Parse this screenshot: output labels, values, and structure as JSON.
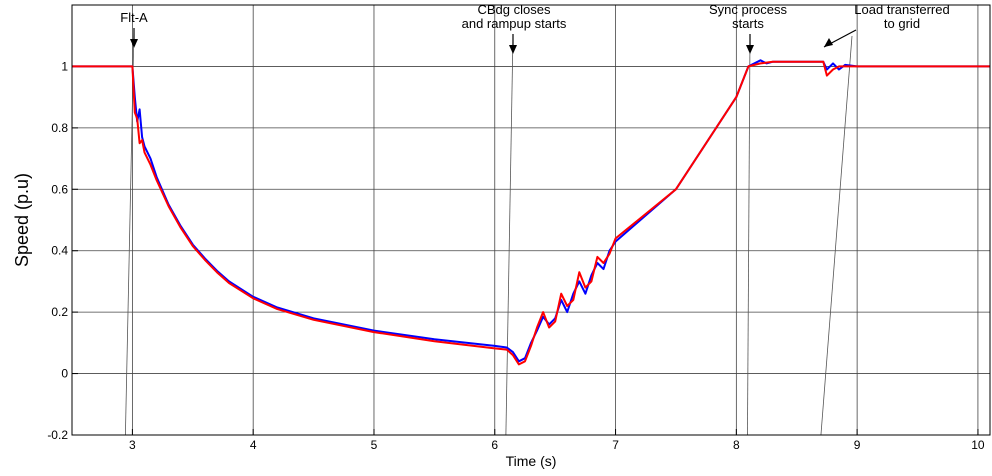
{
  "chart_data": {
    "type": "line",
    "xlabel": "Time (s)",
    "ylabel": "Speed (p.u)",
    "xlim": [
      2.5,
      10.1
    ],
    "ylim": [
      -0.2,
      1.2
    ],
    "x_ticks": [
      3,
      4,
      5,
      6,
      7,
      8,
      9,
      10
    ],
    "y_ticks": [
      -0.2,
      0,
      0.2,
      0.4,
      0.6,
      0.8,
      1
    ],
    "grid": true,
    "series": [
      {
        "color": "#0000ff",
        "points": [
          [
            2.5,
            1.0
          ],
          [
            2.99,
            1.0
          ],
          [
            3.0,
            1.0
          ],
          [
            3.02,
            0.9
          ],
          [
            3.04,
            0.82
          ],
          [
            3.06,
            0.86
          ],
          [
            3.08,
            0.77
          ],
          [
            3.1,
            0.74
          ],
          [
            3.15,
            0.7
          ],
          [
            3.2,
            0.64
          ],
          [
            3.3,
            0.55
          ],
          [
            3.4,
            0.48
          ],
          [
            3.5,
            0.42
          ],
          [
            3.6,
            0.375
          ],
          [
            3.7,
            0.335
          ],
          [
            3.8,
            0.3
          ],
          [
            4.0,
            0.25
          ],
          [
            4.2,
            0.215
          ],
          [
            4.5,
            0.18
          ],
          [
            5.0,
            0.14
          ],
          [
            5.5,
            0.112
          ],
          [
            6.0,
            0.09
          ],
          [
            6.1,
            0.085
          ],
          [
            6.15,
            0.07
          ],
          [
            6.2,
            0.04
          ],
          [
            6.25,
            0.05
          ],
          [
            6.3,
            0.1
          ],
          [
            6.35,
            0.14
          ],
          [
            6.4,
            0.185
          ],
          [
            6.45,
            0.16
          ],
          [
            6.5,
            0.18
          ],
          [
            6.55,
            0.24
          ],
          [
            6.6,
            0.2
          ],
          [
            6.65,
            0.26
          ],
          [
            6.7,
            0.3
          ],
          [
            6.75,
            0.26
          ],
          [
            6.8,
            0.32
          ],
          [
            6.85,
            0.36
          ],
          [
            6.9,
            0.34
          ],
          [
            6.95,
            0.4
          ],
          [
            7.0,
            0.43
          ],
          [
            7.5,
            0.6
          ],
          [
            8.0,
            0.9
          ],
          [
            8.1,
            1.0
          ],
          [
            8.2,
            1.02
          ],
          [
            8.25,
            1.01
          ],
          [
            8.3,
            1.015
          ],
          [
            8.4,
            1.015
          ],
          [
            8.72,
            1.015
          ],
          [
            8.75,
            0.99
          ],
          [
            8.8,
            1.01
          ],
          [
            8.85,
            0.99
          ],
          [
            8.9,
            1.005
          ],
          [
            9.0,
            1.0
          ],
          [
            10.1,
            1.0
          ]
        ]
      },
      {
        "color": "#ff0000",
        "points": [
          [
            2.5,
            1.0
          ],
          [
            2.99,
            1.0
          ],
          [
            3.0,
            1.0
          ],
          [
            3.02,
            0.85
          ],
          [
            3.04,
            0.83
          ],
          [
            3.06,
            0.75
          ],
          [
            3.08,
            0.76
          ],
          [
            3.1,
            0.72
          ],
          [
            3.15,
            0.68
          ],
          [
            3.2,
            0.63
          ],
          [
            3.3,
            0.545
          ],
          [
            3.4,
            0.475
          ],
          [
            3.5,
            0.415
          ],
          [
            3.6,
            0.37
          ],
          [
            3.7,
            0.33
          ],
          [
            3.8,
            0.295
          ],
          [
            4.0,
            0.245
          ],
          [
            4.2,
            0.21
          ],
          [
            4.5,
            0.175
          ],
          [
            5.0,
            0.135
          ],
          [
            5.5,
            0.105
          ],
          [
            6.0,
            0.082
          ],
          [
            6.1,
            0.078
          ],
          [
            6.15,
            0.06
          ],
          [
            6.2,
            0.03
          ],
          [
            6.25,
            0.04
          ],
          [
            6.3,
            0.09
          ],
          [
            6.35,
            0.15
          ],
          [
            6.4,
            0.2
          ],
          [
            6.45,
            0.15
          ],
          [
            6.5,
            0.17
          ],
          [
            6.55,
            0.26
          ],
          [
            6.6,
            0.22
          ],
          [
            6.65,
            0.24
          ],
          [
            6.7,
            0.33
          ],
          [
            6.75,
            0.28
          ],
          [
            6.8,
            0.3
          ],
          [
            6.85,
            0.38
          ],
          [
            6.9,
            0.36
          ],
          [
            6.95,
            0.39
          ],
          [
            7.0,
            0.44
          ],
          [
            7.5,
            0.6
          ],
          [
            8.0,
            0.9
          ],
          [
            8.1,
            1.0
          ],
          [
            8.2,
            1.01
          ],
          [
            8.3,
            1.015
          ],
          [
            8.72,
            1.015
          ],
          [
            8.75,
            0.97
          ],
          [
            8.8,
            0.99
          ],
          [
            8.85,
            1.0
          ],
          [
            9.0,
            1.0
          ],
          [
            10.1,
            1.0
          ]
        ]
      }
    ],
    "annotations": [
      {
        "lines": [
          "Flt-A"
        ],
        "x": 3.0,
        "y": 1.0
      },
      {
        "lines": [
          "CBdg closes",
          "and rampup starts"
        ],
        "x": 6.15,
        "y": 0.05
      },
      {
        "lines": [
          "Sync process",
          "starts"
        ],
        "x": 8.15,
        "y": 1.02
      },
      {
        "lines": [
          "Load transferred",
          "to grid"
        ],
        "x": 8.75,
        "y": 0.99
      }
    ]
  }
}
